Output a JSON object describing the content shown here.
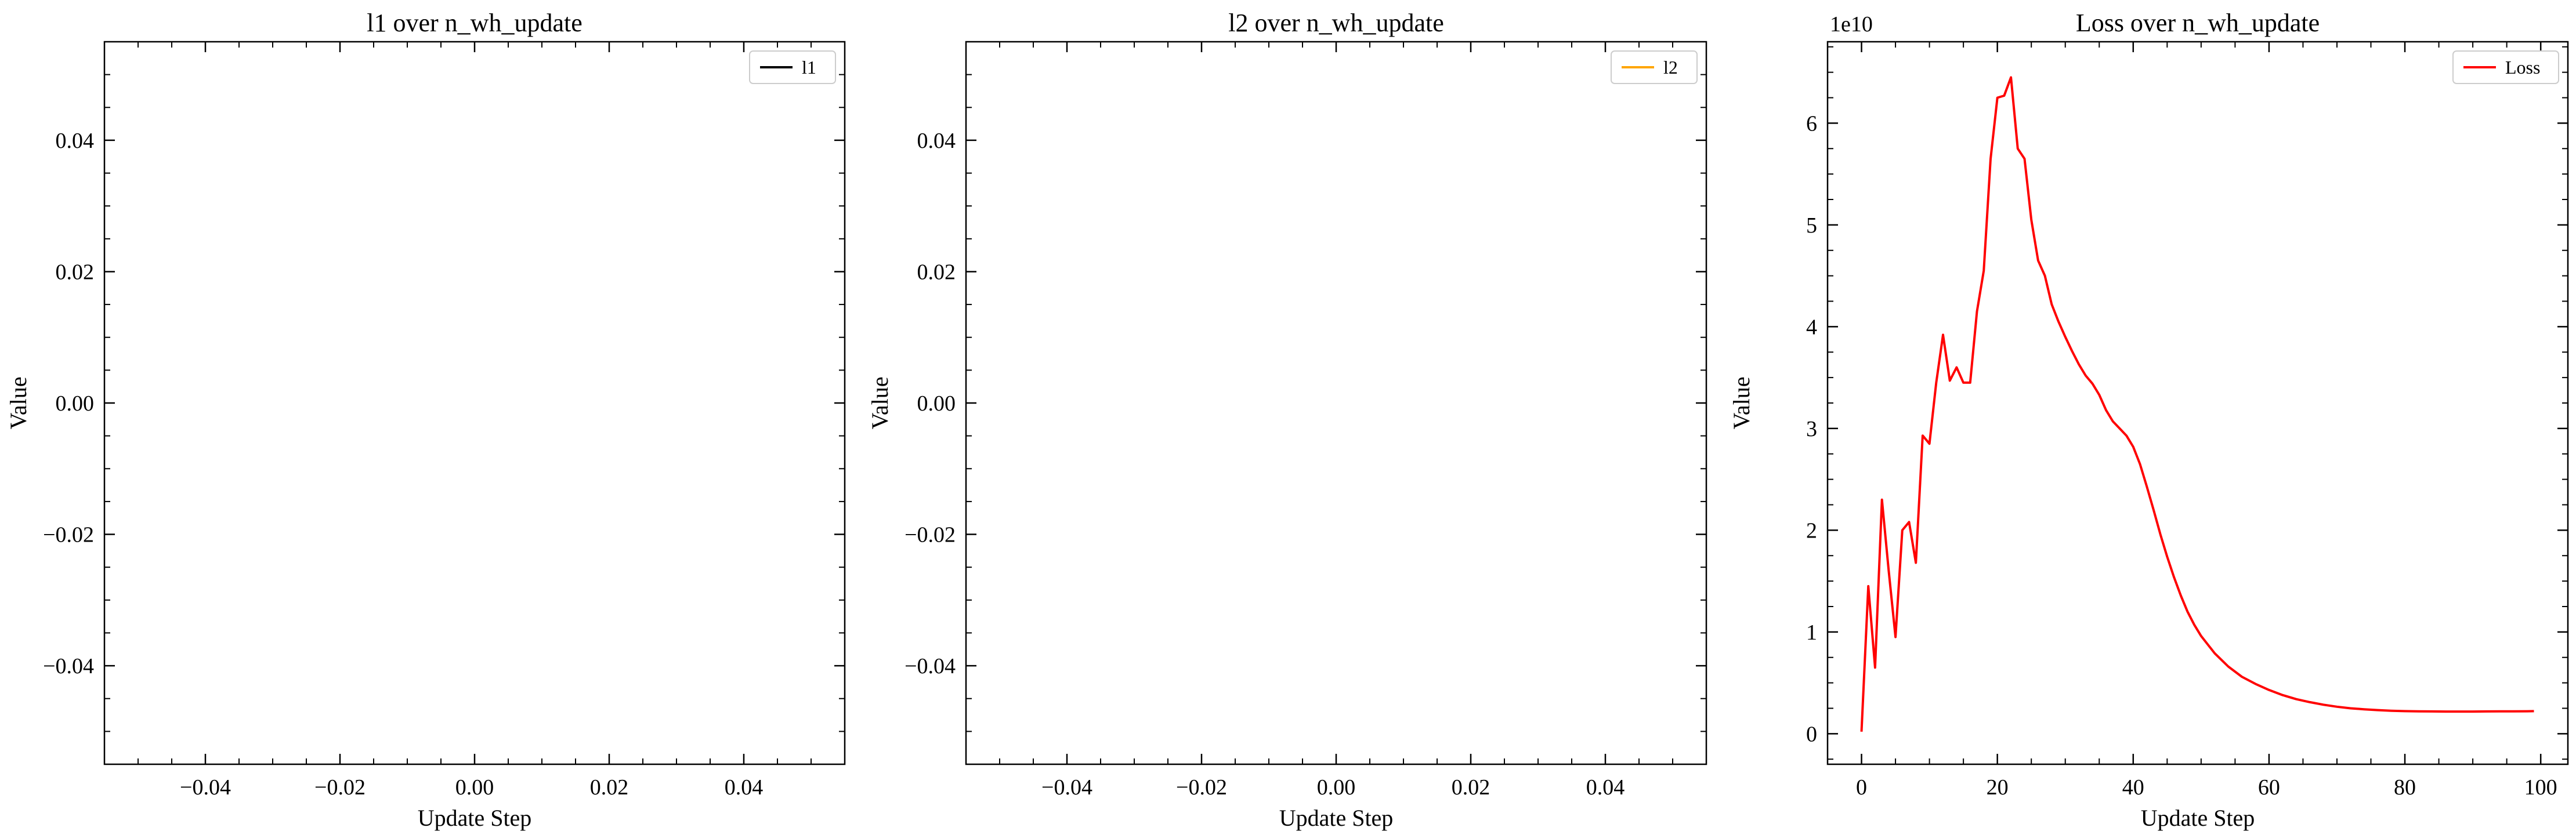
{
  "figure": {
    "background": "#ffffff"
  },
  "chart_data": [
    {
      "type": "line",
      "title": "l1 over n_wh_update",
      "xlabel": "Update Step",
      "ylabel": "Value",
      "xlim": [
        -0.055,
        0.055
      ],
      "ylim": [
        -0.055,
        0.055
      ],
      "xticks": [
        -0.04,
        -0.02,
        0.0,
        0.02,
        0.04
      ],
      "yticks": [
        -0.04,
        -0.02,
        0.0,
        0.02,
        0.04
      ],
      "xtick_labels": [
        "−0.04",
        "−0.02",
        "0.00",
        "0.02",
        "0.04"
      ],
      "ytick_labels": [
        "−0.04",
        "−0.02",
        "0.00",
        "0.02",
        "0.04"
      ],
      "y_offset_text": "",
      "legend": "top-right",
      "series": [
        {
          "name": "l1",
          "color": "#000000",
          "x": [],
          "y": []
        }
      ]
    },
    {
      "type": "line",
      "title": "l2 over n_wh_update",
      "xlabel": "Update Step",
      "ylabel": "Value",
      "xlim": [
        -0.055,
        0.055
      ],
      "ylim": [
        -0.055,
        0.055
      ],
      "xticks": [
        -0.04,
        -0.02,
        0.0,
        0.02,
        0.04
      ],
      "yticks": [
        -0.04,
        -0.02,
        0.0,
        0.02,
        0.04
      ],
      "xtick_labels": [
        "−0.04",
        "−0.02",
        "0.00",
        "0.02",
        "0.04"
      ],
      "ytick_labels": [
        "−0.04",
        "−0.02",
        "0.00",
        "0.02",
        "0.04"
      ],
      "y_offset_text": "",
      "legend": "top-right",
      "series": [
        {
          "name": "l2",
          "color": "#ffa500",
          "x": [],
          "y": []
        }
      ]
    },
    {
      "type": "line",
      "title": "Loss over n_wh_update",
      "xlabel": "Update Step",
      "ylabel": "Value",
      "xlim": [
        -5,
        104
      ],
      "ylim": [
        -0.3,
        6.8
      ],
      "xticks": [
        0,
        20,
        40,
        60,
        80,
        100
      ],
      "yticks": [
        0,
        1,
        2,
        3,
        4,
        5,
        6
      ],
      "xtick_labels": [
        "0",
        "20",
        "40",
        "60",
        "80",
        "100"
      ],
      "ytick_labels": [
        "0",
        "1",
        "2",
        "3",
        "4",
        "5",
        "6"
      ],
      "y_offset_text": "1e10",
      "legend": "top-right",
      "series": [
        {
          "name": "Loss",
          "color": "#ff0000",
          "x": [
            0,
            1,
            2,
            3,
            4,
            5,
            6,
            7,
            8,
            9,
            10,
            11,
            12,
            13,
            14,
            15,
            16,
            17,
            18,
            19,
            20,
            21,
            22,
            23,
            24,
            25,
            26,
            27,
            28,
            29,
            30,
            31,
            32,
            33,
            34,
            35,
            36,
            37,
            38,
            39,
            40,
            41,
            42,
            43,
            44,
            45,
            46,
            47,
            48,
            49,
            50,
            52,
            54,
            56,
            58,
            60,
            62,
            64,
            66,
            68,
            70,
            72,
            74,
            76,
            78,
            80,
            82,
            84,
            86,
            88,
            90,
            92,
            94,
            96,
            98,
            99
          ],
          "y": [
            0.02,
            1.45,
            0.65,
            2.3,
            1.6,
            0.95,
            2.0,
            2.08,
            1.68,
            2.93,
            2.85,
            3.45,
            3.92,
            3.47,
            3.6,
            3.45,
            3.45,
            4.15,
            4.55,
            5.65,
            6.25,
            6.27,
            6.45,
            5.75,
            5.65,
            5.05,
            4.65,
            4.5,
            4.22,
            4.05,
            3.9,
            3.76,
            3.63,
            3.52,
            3.44,
            3.33,
            3.18,
            3.07,
            3.0,
            2.93,
            2.82,
            2.65,
            2.43,
            2.2,
            1.96,
            1.74,
            1.54,
            1.36,
            1.2,
            1.07,
            0.96,
            0.79,
            0.66,
            0.56,
            0.49,
            0.43,
            0.38,
            0.34,
            0.31,
            0.285,
            0.265,
            0.25,
            0.24,
            0.232,
            0.226,
            0.222,
            0.22,
            0.219,
            0.218,
            0.218,
            0.218,
            0.219,
            0.22,
            0.22,
            0.221,
            0.222
          ]
        }
      ]
    }
  ]
}
